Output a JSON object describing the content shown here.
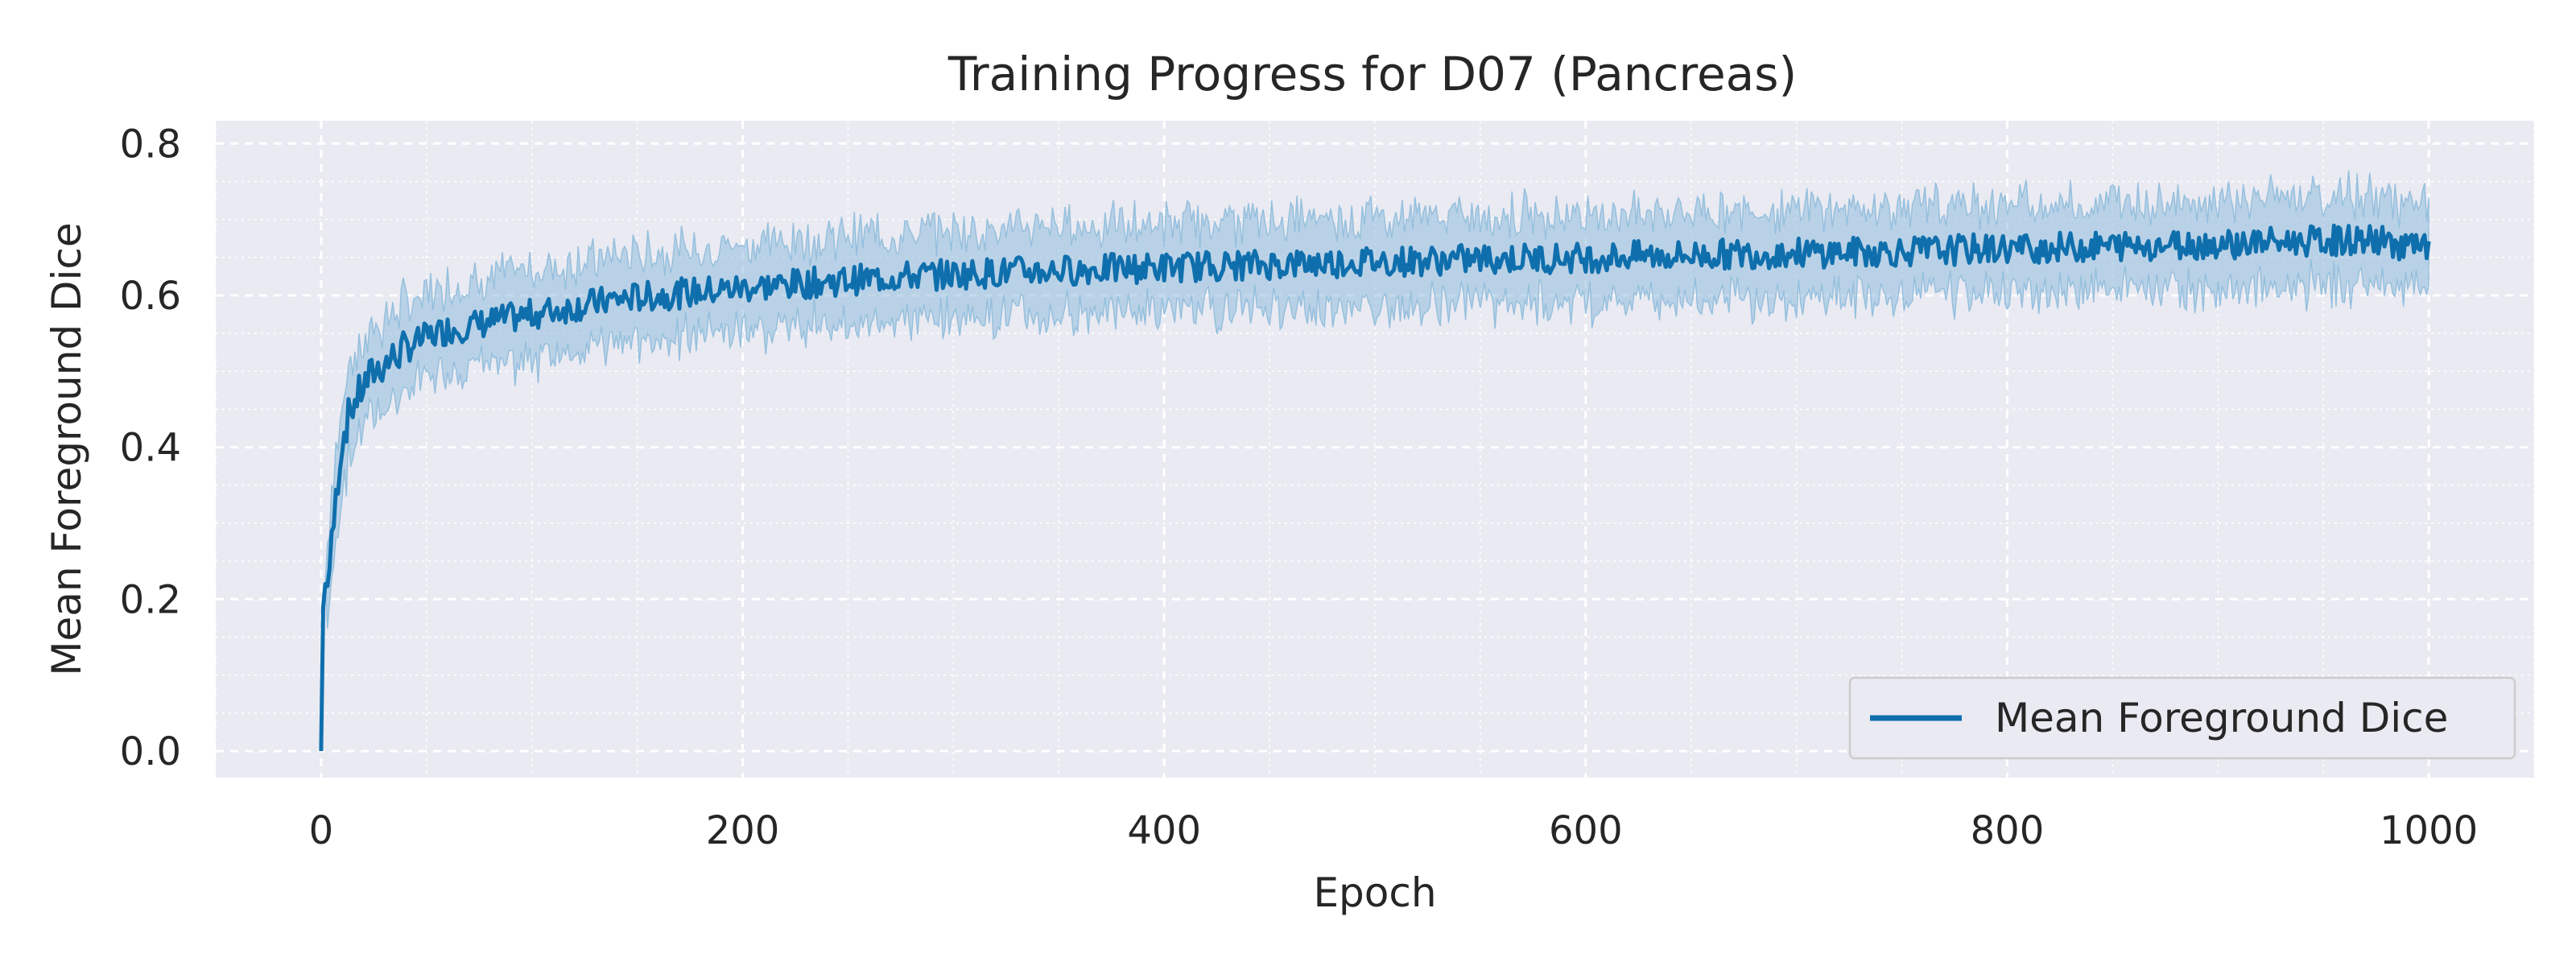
{
  "chart_data": {
    "type": "line",
    "title": "Training Progress for D07 (Pancreas)",
    "xlabel": "Epoch",
    "ylabel": "Mean Foreground Dice",
    "xlim": [
      -50,
      1050
    ],
    "ylim": [
      -0.035,
      0.83
    ],
    "xticks": [
      0,
      200,
      400,
      600,
      800,
      1000
    ],
    "yticks": [
      0.0,
      0.2,
      0.4,
      0.6,
      0.8
    ],
    "grid": true,
    "legend_position": "lower-right",
    "series": [
      {
        "name": "Mean Foreground Dice",
        "color": "#0f6fad",
        "band_color": "#8fbcdc",
        "x": [
          0,
          1,
          2,
          4,
          6,
          8,
          10,
          12,
          14,
          16,
          18,
          20,
          25,
          30,
          35,
          40,
          50,
          60,
          70,
          80,
          90,
          100,
          120,
          140,
          160,
          180,
          200,
          225,
          250,
          275,
          300,
          325,
          350,
          375,
          400,
          425,
          450,
          475,
          500,
          525,
          550,
          575,
          600,
          625,
          650,
          675,
          700,
          725,
          750,
          775,
          800,
          825,
          850,
          875,
          900,
          925,
          950,
          975,
          1000
        ],
        "y": [
          0.0,
          0.19,
          0.22,
          0.24,
          0.3,
          0.36,
          0.41,
          0.43,
          0.45,
          0.46,
          0.47,
          0.48,
          0.5,
          0.51,
          0.52,
          0.53,
          0.545,
          0.555,
          0.56,
          0.565,
          0.57,
          0.575,
          0.585,
          0.595,
          0.6,
          0.605,
          0.61,
          0.615,
          0.62,
          0.625,
          0.628,
          0.631,
          0.633,
          0.635,
          0.637,
          0.639,
          0.641,
          0.643,
          0.645,
          0.646,
          0.648,
          0.649,
          0.65,
          0.652,
          0.653,
          0.655,
          0.656,
          0.657,
          0.658,
          0.66,
          0.662,
          0.663,
          0.665,
          0.667,
          0.668,
          0.67,
          0.672,
          0.673,
          0.66
        ],
        "band_halfwidth": 0.055
      }
    ]
  }
}
